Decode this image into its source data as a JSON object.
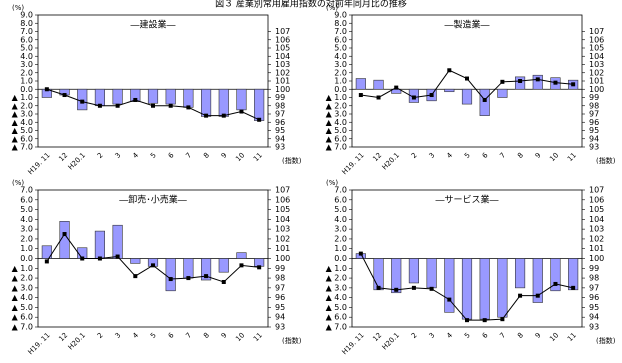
{
  "title": "図３ 産業別常用雇用指数の対前年同月比の推移",
  "chart_data": [
    {
      "type": "combo",
      "title": "―建設業―",
      "y_label": "(%)",
      "y2_label": "(指数)",
      "categories": [
        "H19. 11",
        "12",
        "H20.1",
        "2",
        "3",
        "4",
        "5",
        "6",
        "7",
        "8",
        "9",
        "10",
        "11"
      ],
      "series": [
        {
          "type": "bar",
          "color": "#9999ff",
          "values": [
            -1.0,
            -0.7,
            -2.5,
            -2.0,
            -1.8,
            -1.5,
            -1.7,
            -1.8,
            -2.2,
            -3.3,
            -3.3,
            -2.5,
            -3.8
          ]
        },
        {
          "type": "line",
          "axis": "y2",
          "color": "#000000",
          "values": [
            100.0,
            99.3,
            98.5,
            98.0,
            98.0,
            98.7,
            98.0,
            98.0,
            97.8,
            96.8,
            96.8,
            97.3,
            96.3
          ]
        }
      ],
      "ylim": [
        -7,
        9
      ],
      "yticks": [
        {
          "value": 9,
          "label": "9.0"
        },
        {
          "value": 8,
          "label": "8.0"
        },
        {
          "value": 7,
          "label": "7.0"
        },
        {
          "value": 6,
          "label": "6.0"
        },
        {
          "value": 5,
          "label": "5.0"
        },
        {
          "value": 4,
          "label": "4.0"
        },
        {
          "value": 3,
          "label": "3.0"
        },
        {
          "value": 2,
          "label": "2.0"
        },
        {
          "value": 1,
          "label": "1.0"
        },
        {
          "value": 0,
          "label": "0.0"
        },
        {
          "value": -1,
          "label": "▲ 1.0"
        },
        {
          "value": -2,
          "label": "▲ 2.0"
        },
        {
          "value": -3,
          "label": "▲ 3.0"
        },
        {
          "value": -4,
          "label": "▲ 4.0"
        },
        {
          "value": -5,
          "label": "▲ 5.0"
        },
        {
          "value": -6,
          "label": "▲ 6.0"
        },
        {
          "value": -7,
          "label": "▲ 7.0"
        }
      ],
      "y2lim": [
        93,
        109
      ],
      "y2ticks": [
        107,
        106,
        105,
        104,
        103,
        102,
        101,
        100,
        99,
        98,
        97,
        96,
        95,
        94,
        93
      ]
    },
    {
      "type": "combo",
      "title": "―製造業―",
      "y_label": "(%)",
      "y2_label": "(指数)",
      "categories": [
        "H19. 11",
        "12",
        "H20.1",
        "2",
        "3",
        "4",
        "5",
        "6",
        "7",
        "8",
        "9",
        "10",
        "11"
      ],
      "series": [
        {
          "type": "bar",
          "color": "#9999ff",
          "values": [
            1.3,
            1.1,
            -0.5,
            -1.6,
            -1.4,
            -0.3,
            -1.8,
            -3.2,
            -1.0,
            1.5,
            1.7,
            1.4,
            1.1
          ]
        },
        {
          "type": "line",
          "axis": "y2",
          "color": "#000000",
          "values": [
            99.3,
            99.0,
            100.2,
            99.0,
            99.3,
            102.3,
            101.3,
            98.7,
            100.9,
            101.0,
            101.2,
            100.8,
            100.6
          ]
        }
      ],
      "ylim": [
        -7,
        9
      ],
      "yticks": [
        {
          "value": 9,
          "label": "9.0"
        },
        {
          "value": 8,
          "label": "8.0"
        },
        {
          "value": 7,
          "label": "7.0"
        },
        {
          "value": 6,
          "label": "6.0"
        },
        {
          "value": 5,
          "label": "5.0"
        },
        {
          "value": 4,
          "label": "4.0"
        },
        {
          "value": 3,
          "label": "3.0"
        },
        {
          "value": 2,
          "label": "2.0"
        },
        {
          "value": 1,
          "label": "1.0"
        },
        {
          "value": 0,
          "label": "0.0"
        },
        {
          "value": -1,
          "label": "▲ 1.0"
        },
        {
          "value": -2,
          "label": "▲ 2.0"
        },
        {
          "value": -3,
          "label": "▲ 3.0"
        },
        {
          "value": -4,
          "label": "▲ 4.0"
        },
        {
          "value": -5,
          "label": "▲ 5.0"
        },
        {
          "value": -6,
          "label": "▲ 6.0"
        },
        {
          "value": -7,
          "label": "▲ 7.0"
        }
      ],
      "y2lim": [
        93,
        109
      ],
      "y2ticks": [
        107,
        106,
        105,
        104,
        103,
        102,
        101,
        100,
        99,
        98,
        97,
        96,
        95,
        94,
        93
      ]
    },
    {
      "type": "combo",
      "title": "―卸売･小売業―",
      "y_label": "(%)",
      "y2_label": "(指数)",
      "categories": [
        "H19. 11",
        "12",
        "H20.1",
        "2",
        "3",
        "4",
        "5",
        "6",
        "7",
        "8",
        "9",
        "10",
        "11"
      ],
      "series": [
        {
          "type": "bar",
          "color": "#9999ff",
          "values": [
            1.3,
            3.8,
            1.1,
            2.8,
            3.4,
            -0.5,
            -0.8,
            -3.3,
            -2.0,
            -2.2,
            -1.4,
            0.6,
            -0.8
          ]
        },
        {
          "type": "line",
          "axis": "y2",
          "color": "#000000",
          "values": [
            99.7,
            102.5,
            100.0,
            100.0,
            100.2,
            98.2,
            99.3,
            97.9,
            98.0,
            98.2,
            97.6,
            99.3,
            99.1
          ]
        }
      ],
      "ylim": [
        -7,
        7
      ],
      "yticks": [
        {
          "value": 7,
          "label": "7.0"
        },
        {
          "value": 6,
          "label": "6.0"
        },
        {
          "value": 5,
          "label": "5.0"
        },
        {
          "value": 4,
          "label": "4.0"
        },
        {
          "value": 3,
          "label": "3.0"
        },
        {
          "value": 2,
          "label": "2.0"
        },
        {
          "value": 1,
          "label": "1.0"
        },
        {
          "value": 0,
          "label": "0.0"
        },
        {
          "value": -1,
          "label": "▲ 1.0"
        },
        {
          "value": -2,
          "label": "▲ 2.0"
        },
        {
          "value": -3,
          "label": "▲ 3.0"
        },
        {
          "value": -4,
          "label": "▲ 4.0"
        },
        {
          "value": -5,
          "label": "▲ 5.0"
        },
        {
          "value": -6,
          "label": "▲ 6.0"
        },
        {
          "value": -7,
          "label": "▲ 7.0"
        }
      ],
      "y2lim": [
        93,
        107
      ],
      "y2ticks": [
        107,
        106,
        105,
        104,
        103,
        102,
        101,
        100,
        99,
        98,
        97,
        96,
        95,
        94,
        93
      ]
    },
    {
      "type": "combo",
      "title": "―サービス業―",
      "y_label": "(%)",
      "y2_label": "(指数)",
      "categories": [
        "H19. 11",
        "12",
        "H20.1",
        "2",
        "3",
        "4",
        "5",
        "6",
        "7",
        "8",
        "9",
        "10",
        "11"
      ],
      "series": [
        {
          "type": "bar",
          "color": "#9999ff",
          "values": [
            0.5,
            -3.2,
            -3.5,
            -2.5,
            -3.0,
            -5.5,
            -6.2,
            -6.2,
            -6.0,
            -3.0,
            -4.5,
            -3.3,
            -3.2
          ]
        },
        {
          "type": "line",
          "axis": "y2",
          "color": "#000000",
          "values": [
            100.5,
            97.0,
            96.8,
            97.0,
            96.9,
            95.8,
            93.7,
            93.7,
            93.8,
            96.2,
            96.2,
            97.4,
            97.0
          ]
        }
      ],
      "ylim": [
        -7,
        7
      ],
      "yticks": [
        {
          "value": 7,
          "label": "7.0"
        },
        {
          "value": 6,
          "label": "6.0"
        },
        {
          "value": 5,
          "label": "5.0"
        },
        {
          "value": 4,
          "label": "4.0"
        },
        {
          "value": 3,
          "label": "3.0"
        },
        {
          "value": 2,
          "label": "2.0"
        },
        {
          "value": 1,
          "label": "1.0"
        },
        {
          "value": 0,
          "label": "0.0"
        },
        {
          "value": -1,
          "label": "▲ 1.0"
        },
        {
          "value": -2,
          "label": "▲ 2.0"
        },
        {
          "value": -3,
          "label": "▲ 3.0"
        },
        {
          "value": -4,
          "label": "▲ 4.0"
        },
        {
          "value": -5,
          "label": "▲ 5.0"
        },
        {
          "value": -6,
          "label": "▲ 6.0"
        },
        {
          "value": -7,
          "label": "▲ 7.0"
        }
      ],
      "y2lim": [
        93,
        107
      ],
      "y2ticks": [
        107,
        106,
        105,
        104,
        103,
        102,
        101,
        100,
        99,
        98,
        97,
        96,
        95,
        94,
        93
      ]
    }
  ]
}
